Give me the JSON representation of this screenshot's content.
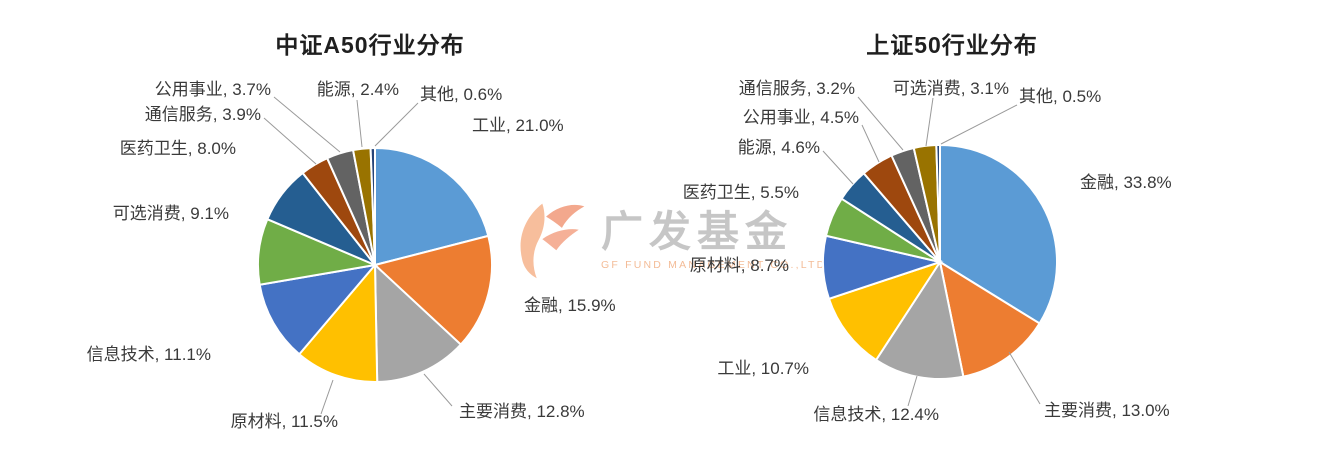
{
  "page": {
    "background": "#ffffff"
  },
  "watermark": {
    "logo_icon": "gf-flame-logo",
    "text": "广发基金",
    "subtext": "GF FUND MANAGEMENT CO.,LTD",
    "accent_color": "#E8541E",
    "text_color": "#8F8F8F"
  },
  "chart_data": [
    {
      "type": "pie",
      "title": "中证A50行业分布",
      "legend": "none",
      "start_angle": 0,
      "direction": "clockwise",
      "data_labels": "outside-end",
      "categories": [
        "工业",
        "金融",
        "主要消费",
        "原材料",
        "信息技术",
        "可选消费",
        "医药卫生",
        "通信服务",
        "公用事业",
        "能源",
        "其他"
      ],
      "values": [
        21.0,
        15.9,
        12.8,
        11.5,
        11.1,
        9.1,
        8.0,
        3.9,
        3.7,
        2.4,
        0.6
      ],
      "labels": [
        "工业, 21.0%",
        "金融, 15.9%",
        "主要消费, 12.8%",
        "原材料, 11.5%",
        "信息技术, 11.1%",
        "可选消费, 9.1%",
        "医药卫生, 8.0%",
        "通信服务, 3.9%",
        "公用事业, 3.7%",
        "能源, 2.4%",
        "其他, 0.6%"
      ],
      "colors": [
        "#5B9BD5",
        "#ED7D31",
        "#A5A5A5",
        "#FFC000",
        "#4472C4",
        "#70AD47",
        "#255E91",
        "#9E480E",
        "#636363",
        "#997300",
        "#264478"
      ]
    },
    {
      "type": "pie",
      "title": "上证50行业分布",
      "legend": "none",
      "start_angle": 0,
      "direction": "clockwise",
      "data_labels": "outside-end",
      "categories": [
        "金融",
        "主要消费",
        "信息技术",
        "工业",
        "原材料",
        "医药卫生",
        "能源",
        "公用事业",
        "通信服务",
        "可选消费",
        "其他"
      ],
      "values": [
        33.8,
        13.0,
        12.4,
        10.7,
        8.7,
        5.5,
        4.6,
        4.5,
        3.2,
        3.1,
        0.5
      ],
      "labels": [
        "金融, 33.8%",
        "主要消费, 13.0%",
        "信息技术, 12.4%",
        "工业, 10.7%",
        "原材料, 8.7%",
        "医药卫生, 5.5%",
        "能源, 4.6%",
        "公用事业, 4.5%",
        "通信服务, 3.2%",
        "可选消费, 3.1%",
        "其他, 0.5%"
      ],
      "colors": [
        "#5B9BD5",
        "#ED7D31",
        "#A5A5A5",
        "#FFC000",
        "#4472C4",
        "#70AD47",
        "#255E91",
        "#9E480E",
        "#636363",
        "#997300",
        "#264478"
      ]
    }
  ]
}
